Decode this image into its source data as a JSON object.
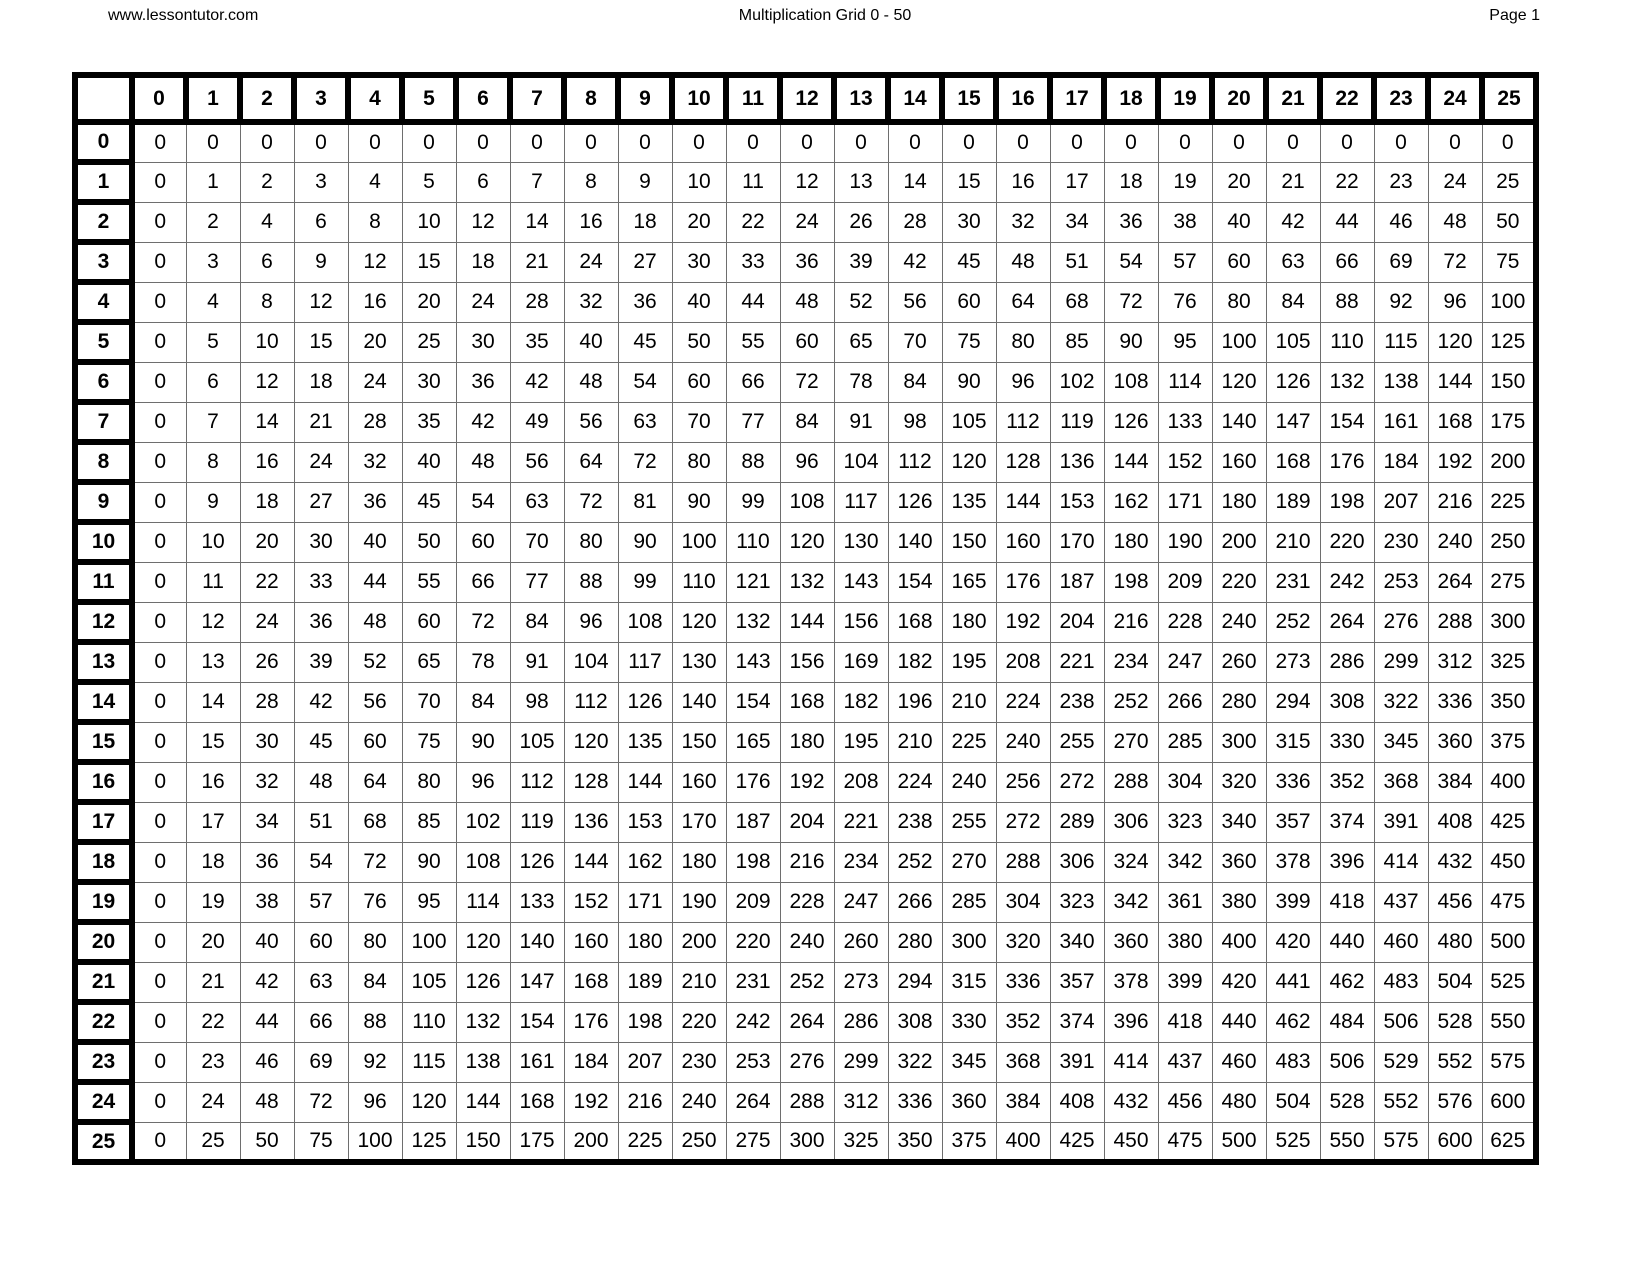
{
  "page_header": {
    "site": "www.lessontutor.com",
    "title": "Multiplication Grid 0 - 50",
    "page_label": "Page 1"
  },
  "colors": {
    "background": "#ffffff",
    "text": "#000000",
    "thick_border": "#000000",
    "thin_border": "#6e6e6e"
  },
  "grid": {
    "corner_label": "",
    "column_headers": [
      "0",
      "1",
      "2",
      "3",
      "4",
      "5",
      "6",
      "7",
      "8",
      "9",
      "10",
      "11",
      "12",
      "13",
      "14",
      "15",
      "16",
      "17",
      "18",
      "19",
      "20",
      "21",
      "22",
      "23",
      "24",
      "25"
    ],
    "rows": [
      {
        "header": "0",
        "values": [
          0,
          0,
          0,
          0,
          0,
          0,
          0,
          0,
          0,
          0,
          0,
          0,
          0,
          0,
          0,
          0,
          0,
          0,
          0,
          0,
          0,
          0,
          0,
          0,
          0,
          0
        ]
      },
      {
        "header": "1",
        "values": [
          0,
          1,
          2,
          3,
          4,
          5,
          6,
          7,
          8,
          9,
          10,
          11,
          12,
          13,
          14,
          15,
          16,
          17,
          18,
          19,
          20,
          21,
          22,
          23,
          24,
          25
        ]
      },
      {
        "header": "2",
        "values": [
          0,
          2,
          4,
          6,
          8,
          10,
          12,
          14,
          16,
          18,
          20,
          22,
          24,
          26,
          28,
          30,
          32,
          34,
          36,
          38,
          40,
          42,
          44,
          46,
          48,
          50
        ]
      },
      {
        "header": "3",
        "values": [
          0,
          3,
          6,
          9,
          12,
          15,
          18,
          21,
          24,
          27,
          30,
          33,
          36,
          39,
          42,
          45,
          48,
          51,
          54,
          57,
          60,
          63,
          66,
          69,
          72,
          75
        ]
      },
      {
        "header": "4",
        "values": [
          0,
          4,
          8,
          12,
          16,
          20,
          24,
          28,
          32,
          36,
          40,
          44,
          48,
          52,
          56,
          60,
          64,
          68,
          72,
          76,
          80,
          84,
          88,
          92,
          96,
          100
        ]
      },
      {
        "header": "5",
        "values": [
          0,
          5,
          10,
          15,
          20,
          25,
          30,
          35,
          40,
          45,
          50,
          55,
          60,
          65,
          70,
          75,
          80,
          85,
          90,
          95,
          100,
          105,
          110,
          115,
          120,
          125
        ]
      },
      {
        "header": "6",
        "values": [
          0,
          6,
          12,
          18,
          24,
          30,
          36,
          42,
          48,
          54,
          60,
          66,
          72,
          78,
          84,
          90,
          96,
          102,
          108,
          114,
          120,
          126,
          132,
          138,
          144,
          150
        ]
      },
      {
        "header": "7",
        "values": [
          0,
          7,
          14,
          21,
          28,
          35,
          42,
          49,
          56,
          63,
          70,
          77,
          84,
          91,
          98,
          105,
          112,
          119,
          126,
          133,
          140,
          147,
          154,
          161,
          168,
          175
        ]
      },
      {
        "header": "8",
        "values": [
          0,
          8,
          16,
          24,
          32,
          40,
          48,
          56,
          64,
          72,
          80,
          88,
          96,
          104,
          112,
          120,
          128,
          136,
          144,
          152,
          160,
          168,
          176,
          184,
          192,
          200
        ]
      },
      {
        "header": "9",
        "values": [
          0,
          9,
          18,
          27,
          36,
          45,
          54,
          63,
          72,
          81,
          90,
          99,
          108,
          117,
          126,
          135,
          144,
          153,
          162,
          171,
          180,
          189,
          198,
          207,
          216,
          225
        ]
      },
      {
        "header": "10",
        "values": [
          0,
          10,
          20,
          30,
          40,
          50,
          60,
          70,
          80,
          90,
          100,
          110,
          120,
          130,
          140,
          150,
          160,
          170,
          180,
          190,
          200,
          210,
          220,
          230,
          240,
          250
        ]
      },
      {
        "header": "11",
        "values": [
          0,
          11,
          22,
          33,
          44,
          55,
          66,
          77,
          88,
          99,
          110,
          121,
          132,
          143,
          154,
          165,
          176,
          187,
          198,
          209,
          220,
          231,
          242,
          253,
          264,
          275
        ]
      },
      {
        "header": "12",
        "values": [
          0,
          12,
          24,
          36,
          48,
          60,
          72,
          84,
          96,
          108,
          120,
          132,
          144,
          156,
          168,
          180,
          192,
          204,
          216,
          228,
          240,
          252,
          264,
          276,
          288,
          300
        ]
      },
      {
        "header": "13",
        "values": [
          0,
          13,
          26,
          39,
          52,
          65,
          78,
          91,
          104,
          117,
          130,
          143,
          156,
          169,
          182,
          195,
          208,
          221,
          234,
          247,
          260,
          273,
          286,
          299,
          312,
          325
        ]
      },
      {
        "header": "14",
        "values": [
          0,
          14,
          28,
          42,
          56,
          70,
          84,
          98,
          112,
          126,
          140,
          154,
          168,
          182,
          196,
          210,
          224,
          238,
          252,
          266,
          280,
          294,
          308,
          322,
          336,
          350
        ]
      },
      {
        "header": "15",
        "values": [
          0,
          15,
          30,
          45,
          60,
          75,
          90,
          105,
          120,
          135,
          150,
          165,
          180,
          195,
          210,
          225,
          240,
          255,
          270,
          285,
          300,
          315,
          330,
          345,
          360,
          375
        ]
      },
      {
        "header": "16",
        "values": [
          0,
          16,
          32,
          48,
          64,
          80,
          96,
          112,
          128,
          144,
          160,
          176,
          192,
          208,
          224,
          240,
          256,
          272,
          288,
          304,
          320,
          336,
          352,
          368,
          384,
          400
        ]
      },
      {
        "header": "17",
        "values": [
          0,
          17,
          34,
          51,
          68,
          85,
          102,
          119,
          136,
          153,
          170,
          187,
          204,
          221,
          238,
          255,
          272,
          289,
          306,
          323,
          340,
          357,
          374,
          391,
          408,
          425
        ]
      },
      {
        "header": "18",
        "values": [
          0,
          18,
          36,
          54,
          72,
          90,
          108,
          126,
          144,
          162,
          180,
          198,
          216,
          234,
          252,
          270,
          288,
          306,
          324,
          342,
          360,
          378,
          396,
          414,
          432,
          450
        ]
      },
      {
        "header": "19",
        "values": [
          0,
          19,
          38,
          57,
          76,
          95,
          114,
          133,
          152,
          171,
          190,
          209,
          228,
          247,
          266,
          285,
          304,
          323,
          342,
          361,
          380,
          399,
          418,
          437,
          456,
          475
        ]
      },
      {
        "header": "20",
        "values": [
          0,
          20,
          40,
          60,
          80,
          100,
          120,
          140,
          160,
          180,
          200,
          220,
          240,
          260,
          280,
          300,
          320,
          340,
          360,
          380,
          400,
          420,
          440,
          460,
          480,
          500
        ]
      },
      {
        "header": "21",
        "values": [
          0,
          21,
          42,
          63,
          84,
          105,
          126,
          147,
          168,
          189,
          210,
          231,
          252,
          273,
          294,
          315,
          336,
          357,
          378,
          399,
          420,
          441,
          462,
          483,
          504,
          525
        ]
      },
      {
        "header": "22",
        "values": [
          0,
          22,
          44,
          66,
          88,
          110,
          132,
          154,
          176,
          198,
          220,
          242,
          264,
          286,
          308,
          330,
          352,
          374,
          396,
          418,
          440,
          462,
          484,
          506,
          528,
          550
        ]
      },
      {
        "header": "23",
        "values": [
          0,
          23,
          46,
          69,
          92,
          115,
          138,
          161,
          184,
          207,
          230,
          253,
          276,
          299,
          322,
          345,
          368,
          391,
          414,
          437,
          460,
          483,
          506,
          529,
          552,
          575
        ]
      },
      {
        "header": "24",
        "values": [
          0,
          24,
          48,
          72,
          96,
          120,
          144,
          168,
          192,
          216,
          240,
          264,
          288,
          312,
          336,
          360,
          384,
          408,
          432,
          456,
          480,
          504,
          528,
          552,
          576,
          600
        ]
      },
      {
        "header": "25",
        "values": [
          0,
          25,
          50,
          75,
          100,
          125,
          150,
          175,
          200,
          225,
          250,
          275,
          300,
          325,
          350,
          375,
          400,
          425,
          450,
          475,
          500,
          525,
          550,
          575,
          600,
          625
        ]
      }
    ]
  }
}
